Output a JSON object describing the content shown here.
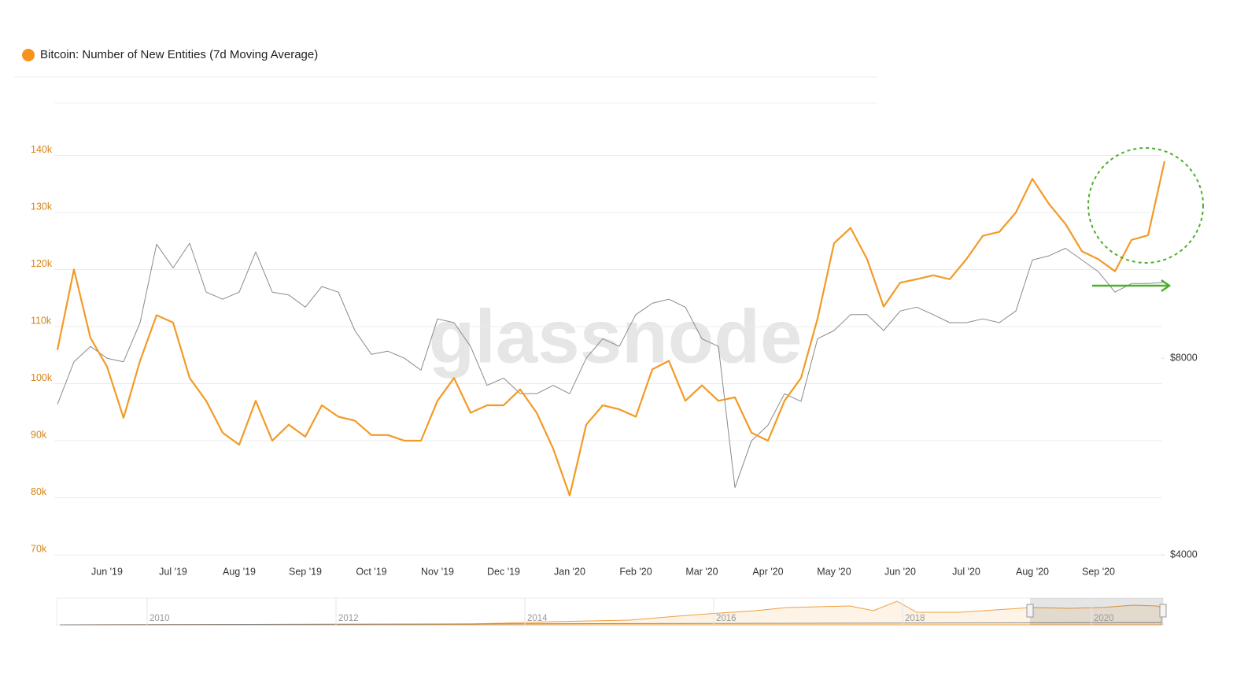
{
  "chart_data": {
    "type": "line",
    "title": "Bitcoin: Number of New Entities (7d Moving Average)",
    "watermark": "glassnode",
    "categories": [
      null,
      null,
      null,
      "Jun '19",
      null,
      null,
      null,
      "Jul '19",
      null,
      null,
      null,
      "Aug '19",
      null,
      null,
      null,
      "Sep '19",
      null,
      null,
      null,
      "Oct '19",
      null,
      null,
      null,
      "Nov '19",
      null,
      null,
      null,
      "Dec '19",
      null,
      null,
      null,
      "Jan '20",
      null,
      null,
      null,
      "Feb '20",
      null,
      null,
      null,
      "Mar '20",
      null,
      null,
      null,
      "Apr '20",
      null,
      null,
      null,
      "May '20",
      null,
      null,
      null,
      "Jun '20",
      null,
      null,
      null,
      "Jul '20",
      null,
      null,
      null,
      "Aug '20",
      null,
      null,
      null,
      "Sep '20",
      null,
      null,
      null,
      null
    ],
    "series": [
      {
        "color": "#f39a26",
        "values": [
          105900,
          120000,
          108000,
          103000,
          94000,
          104000,
          112000,
          110700,
          101000,
          97000,
          91400,
          89300,
          97000,
          90000,
          92800,
          90700,
          96200,
          94200,
          93500,
          91000,
          91000,
          90000,
          90000,
          97000,
          101000,
          94900,
          96200,
          96200,
          99000,
          94900,
          88600,
          80400,
          92800,
          96200,
          95500,
          94200,
          102500,
          104000,
          97000,
          99700,
          97000,
          97600,
          91400,
          90000,
          97000,
          101000,
          111400,
          124600,
          127300,
          121800,
          113500,
          117700,
          118300,
          119000,
          118300,
          121800,
          125900,
          126600,
          130000,
          135900,
          131500,
          128000,
          123200,
          121800,
          119700,
          125200,
          126000,
          139000
        ]
      },
      {
        "color": "#8a8a8a",
        "axis": "y2",
        "values": [
          6800,
          7900,
          8340,
          8000,
          7900,
          9070,
          11960,
          11000,
          12000,
          10100,
          9850,
          10100,
          11640,
          10100,
          10000,
          9580,
          10300,
          10100,
          8820,
          8110,
          8200,
          8000,
          7670,
          9190,
          9070,
          8340,
          7270,
          7460,
          7060,
          7060,
          7270,
          7060,
          8000,
          8570,
          8340,
          9330,
          9710,
          9850,
          9580,
          8570,
          8340,
          5070,
          5980,
          6320,
          7060,
          6870,
          8570,
          8820,
          9330,
          9330,
          8820,
          9450,
          9580,
          9330,
          9070,
          9070,
          9190,
          9070,
          9450,
          11310,
          11480,
          11790,
          11310,
          10850,
          10100,
          10410,
          10410,
          10450
        ]
      }
    ],
    "ylim": [
      70000,
      150000
    ],
    "yticks": [
      {
        "value": 70000,
        "label": "70k"
      },
      {
        "value": 80000,
        "label": "80k"
      },
      {
        "value": 90000,
        "label": "90k"
      },
      {
        "value": 100000,
        "label": "100k"
      },
      {
        "value": 110000,
        "label": "110k"
      },
      {
        "value": 120000,
        "label": "120k"
      },
      {
        "value": 130000,
        "label": "130k"
      },
      {
        "value": 140000,
        "label": "140k"
      }
    ],
    "y2lim": [
      4000,
      20000
    ],
    "y2ticks": [
      {
        "value": 4000,
        "label": "$4000"
      },
      {
        "value": 8000,
        "label": "$8000"
      }
    ],
    "y2log": true,
    "grid": true,
    "navigator_labels": [
      "2010",
      "2012",
      "2014",
      "2016",
      "2018",
      "2020"
    ]
  }
}
